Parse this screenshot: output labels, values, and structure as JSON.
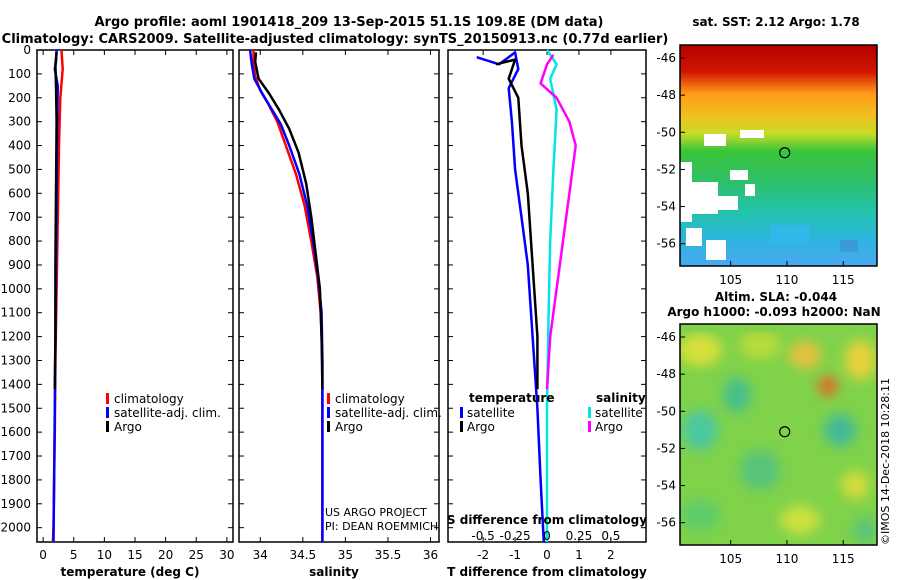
{
  "header": {
    "line1": "Argo profile: aoml 1901418_209 13-Sep-2015 51.1S 109.8E (DM data)",
    "line2": "Climatology: CARS2009. Satellite-adjusted climatology: synTS_20150913.nc (0.77d earlier)"
  },
  "colors": {
    "red": "#ff0000",
    "blue": "#0000ff",
    "black": "#000000",
    "magenta": "#ff00ff",
    "cyan": "#00e5e5"
  },
  "chart_data": [
    {
      "type": "line",
      "id": "temperature",
      "xlabel": "temperature (deg C)",
      "ylabel": "depth",
      "xlim": [
        -1,
        31
      ],
      "ylim": [
        2060,
        0
      ],
      "xticks": [
        0,
        5,
        10,
        15,
        20,
        25,
        30
      ],
      "yticks": [
        0,
        100,
        200,
        300,
        400,
        500,
        600,
        700,
        800,
        900,
        1000,
        1100,
        1200,
        1300,
        1400,
        1500,
        1600,
        1700,
        1800,
        1900,
        2000
      ],
      "series": [
        {
          "name": "climatology",
          "color": "#ff0000",
          "points": [
            [
              3.0,
              0
            ],
            [
              3.2,
              80
            ],
            [
              2.8,
              200
            ],
            [
              2.6,
              400
            ],
            [
              2.4,
              700
            ],
            [
              2.2,
              1000
            ],
            [
              2.0,
              1300
            ],
            [
              1.9,
              1600
            ],
            [
              1.7,
              2000
            ],
            [
              1.6,
              2060
            ]
          ]
        },
        {
          "name": "satellite-adj. clim.",
          "color": "#0000ff",
          "points": [
            [
              2.2,
              0
            ],
            [
              2.1,
              50
            ],
            [
              1.9,
              80
            ],
            [
              2.4,
              150
            ],
            [
              2.3,
              300
            ],
            [
              2.2,
              600
            ],
            [
              2.1,
              900
            ],
            [
              2.0,
              1200
            ],
            [
              1.9,
              1500
            ],
            [
              1.8,
              1800
            ],
            [
              1.7,
              2060
            ]
          ]
        },
        {
          "name": "Argo",
          "color": "#000000",
          "points": [
            [
              2.2,
              10
            ],
            [
              2.0,
              60
            ],
            [
              2.1,
              150
            ],
            [
              2.2,
              300
            ],
            [
              2.1,
              600
            ],
            [
              2.0,
              900
            ],
            [
              2.0,
              1200
            ],
            [
              1.9,
              1420
            ]
          ]
        }
      ],
      "legend": [
        "climatology",
        "satellite-adj. clim.",
        "Argo"
      ]
    },
    {
      "type": "line",
      "id": "salinity",
      "xlabel": "salinity",
      "xlim": [
        33.75,
        36.1
      ],
      "ylim": [
        2060,
        0
      ],
      "xticks": [
        34,
        34.5,
        35,
        35.5,
        36
      ],
      "xticklabels": [
        "34",
        "34.5",
        "35",
        "35.5",
        "36"
      ],
      "series": [
        {
          "name": "climatology",
          "color": "#ff0000",
          "points": [
            [
              33.92,
              0
            ],
            [
              33.92,
              60
            ],
            [
              33.94,
              110
            ],
            [
              34.0,
              170
            ],
            [
              34.1,
              230
            ],
            [
              34.2,
              300
            ],
            [
              34.3,
              400
            ],
            [
              34.42,
              520
            ],
            [
              34.52,
              650
            ],
            [
              34.6,
              800
            ],
            [
              34.67,
              950
            ],
            [
              34.71,
              1100
            ],
            [
              34.73,
              1300
            ],
            [
              34.73,
              1600
            ],
            [
              34.73,
              2060
            ]
          ]
        },
        {
          "name": "satellite-adj. clim.",
          "color": "#0000ff",
          "points": [
            [
              33.88,
              0
            ],
            [
              33.9,
              60
            ],
            [
              33.93,
              120
            ],
            [
              34.02,
              180
            ],
            [
              34.12,
              240
            ],
            [
              34.24,
              310
            ],
            [
              34.34,
              400
            ],
            [
              34.46,
              520
            ],
            [
              34.55,
              650
            ],
            [
              34.62,
              800
            ],
            [
              34.68,
              950
            ],
            [
              34.72,
              1100
            ],
            [
              34.73,
              1300
            ],
            [
              34.73,
              1600
            ],
            [
              34.73,
              2060
            ]
          ]
        },
        {
          "name": "Argo",
          "color": "#000000",
          "points": [
            [
              33.95,
              10
            ],
            [
              33.94,
              50
            ],
            [
              33.98,
              120
            ],
            [
              34.1,
              180
            ],
            [
              34.22,
              250
            ],
            [
              34.34,
              330
            ],
            [
              34.45,
              430
            ],
            [
              34.54,
              560
            ],
            [
              34.6,
              700
            ],
            [
              34.65,
              850
            ],
            [
              34.7,
              1000
            ],
            [
              34.72,
              1200
            ],
            [
              34.73,
              1420
            ]
          ]
        }
      ],
      "legend": [
        "climatology",
        "satellite-adj. clim.",
        "Argo"
      ]
    },
    {
      "type": "line",
      "id": "difference",
      "xlabel": "T difference from climatology",
      "xlabel_top": "S difference from climatology",
      "xlim": [
        -3.1,
        3.1
      ],
      "ylim": [
        2060,
        0
      ],
      "xticks": [
        -2,
        -1,
        0,
        1,
        2
      ],
      "top_ticks": [
        "-0.5",
        "-0.25",
        "0",
        "0.25",
        "0.5"
      ],
      "top_tick_positions": [
        -2,
        -1,
        0,
        1,
        2
      ],
      "series": [
        {
          "name": "temperature satellite",
          "color": "#0000ff",
          "points": [
            [
              -2.2,
              30
            ],
            [
              -1.5,
              60
            ],
            [
              -1.0,
              10
            ],
            [
              -0.9,
              80
            ],
            [
              -1.2,
              160
            ],
            [
              -1.1,
              300
            ],
            [
              -1.0,
              500
            ],
            [
              -0.8,
              700
            ],
            [
              -0.6,
              900
            ],
            [
              -0.5,
              1100
            ],
            [
              -0.4,
              1300
            ],
            [
              -0.3,
              1500
            ],
            [
              -0.2,
              1800
            ],
            [
              -0.1,
              2060
            ]
          ]
        },
        {
          "name": "temperature Argo",
          "color": "#000000",
          "points": [
            [
              -1.6,
              60
            ],
            [
              -1.0,
              40
            ],
            [
              -1.2,
              120
            ],
            [
              -0.9,
              200
            ],
            [
              -0.8,
              400
            ],
            [
              -0.6,
              600
            ],
            [
              -0.5,
              800
            ],
            [
              -0.4,
              1000
            ],
            [
              -0.3,
              1200
            ],
            [
              -0.3,
              1420
            ]
          ]
        },
        {
          "name": "salinity satellite",
          "color": "#00e5e5",
          "points": [
            [
              0.0,
              0
            ],
            [
              0.3,
              60
            ],
            [
              0.1,
              120
            ],
            [
              0.3,
              250
            ],
            [
              0.2,
              500
            ],
            [
              0.1,
              800
            ],
            [
              0.05,
              1100
            ],
            [
              0.0,
              1500
            ],
            [
              0.0,
              2060
            ]
          ]
        },
        {
          "name": "salinity Argo",
          "color": "#ff00ff",
          "points": [
            [
              0.2,
              20
            ],
            [
              0.0,
              60
            ],
            [
              -0.2,
              140
            ],
            [
              0.3,
              200
            ],
            [
              0.7,
              300
            ],
            [
              0.9,
              400
            ],
            [
              0.7,
              600
            ],
            [
              0.5,
              800
            ],
            [
              0.3,
              1000
            ],
            [
              0.1,
              1200
            ],
            [
              0.0,
              1420
            ]
          ]
        }
      ],
      "legend_temperature": {
        "title": "temperature",
        "items": [
          "satellite",
          "Argo"
        ]
      },
      "legend_salinity": {
        "title": "salinity",
        "items": [
          "satellite",
          "Argo"
        ]
      }
    },
    {
      "type": "heatmap",
      "id": "sst_map",
      "title": "sat. SST: 2.12 Argo: 1.78",
      "xticks": [
        105,
        110,
        115
      ],
      "yticks": [
        -46,
        -48,
        -50,
        -52,
        -54,
        -56
      ],
      "xlim": [
        100.5,
        118
      ],
      "ylim": [
        -57.2,
        -45.3
      ],
      "marker": [
        109.8,
        -51.1
      ]
    },
    {
      "type": "heatmap",
      "id": "sla_map",
      "title": "Altim. SLA: -0.044",
      "title2": "Argo h1000: -0.093 h2000: NaN",
      "xticks": [
        105,
        110,
        115
      ],
      "yticks": [
        -46,
        -48,
        -50,
        -52,
        -54,
        -56
      ],
      "xlim": [
        100.5,
        118
      ],
      "ylim": [
        -57.2,
        -45.3
      ],
      "marker": [
        109.8,
        -51.1
      ]
    }
  ],
  "annotations": {
    "project1": "US ARGO PROJECT",
    "project2": "PI: DEAN ROEMMICH",
    "watermark": "©IMOS 14-Dec-2018 10:28:11"
  }
}
